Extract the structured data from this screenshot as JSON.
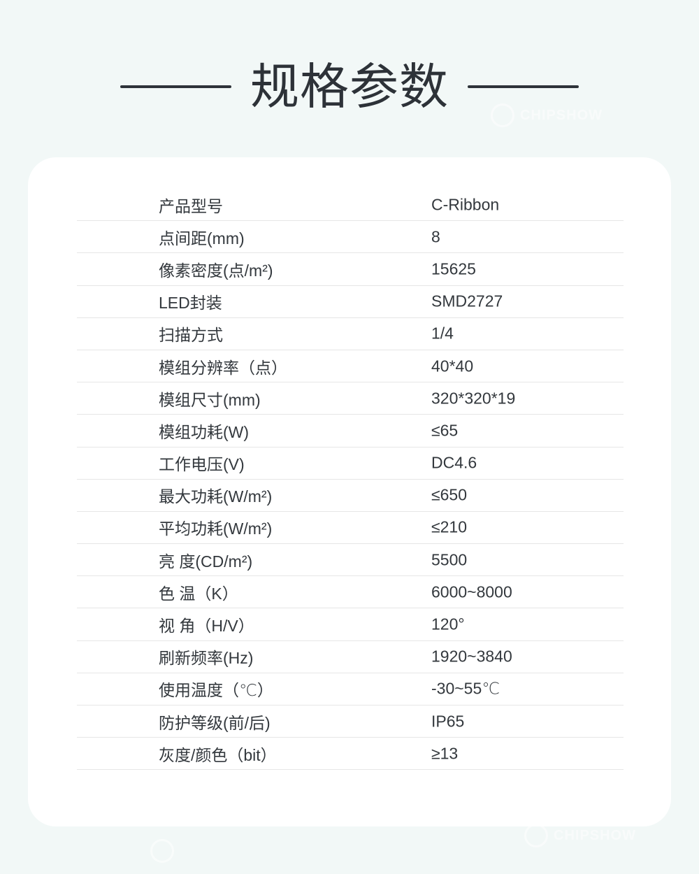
{
  "page": {
    "background_color": "#f2f8f7",
    "card_color": "#ffffff",
    "text_color": "#33383d",
    "divider_color": "#e6e6e6",
    "title_color": "#2d3238"
  },
  "header": {
    "title": "规格参数"
  },
  "watermark": {
    "brand": "CHIPSHOW"
  },
  "spec_table": {
    "rows": [
      {
        "label": "产品型号",
        "value": "C-Ribbon"
      },
      {
        "label": "点间距(mm)",
        "value": "8"
      },
      {
        "label": "像素密度(点/m²)",
        "value": "15625"
      },
      {
        "label": "LED封装",
        "value": "SMD2727"
      },
      {
        "label": "扫描方式",
        "value": "1/4"
      },
      {
        "label": "模组分辨率（点）",
        "value": "40*40"
      },
      {
        "label": "模组尺寸(mm)",
        "value": "320*320*19"
      },
      {
        "label": "模组功耗(W)",
        "value": "≤65"
      },
      {
        "label": "工作电压(V)",
        "value": "DC4.6"
      },
      {
        "label": "最大功耗(W/m²)",
        "value": "≤650"
      },
      {
        "label": "平均功耗(W/m²)",
        "value": "≤210"
      },
      {
        "label": "亮 度(CD/m²)",
        "value": "5500"
      },
      {
        "label": "色 温（K）",
        "value": "6000~8000"
      },
      {
        "label": "视 角（H/V）",
        "value": "120°"
      },
      {
        "label": "刷新频率(Hz)",
        "value": "1920~3840"
      },
      {
        "label": "使用温度（℃）",
        "value": "-30~55℃"
      },
      {
        "label": "防护等级(前/后)",
        "value": "IP65"
      },
      {
        "label": "灰度/颜色（bit）",
        "value": "≥13"
      }
    ]
  }
}
